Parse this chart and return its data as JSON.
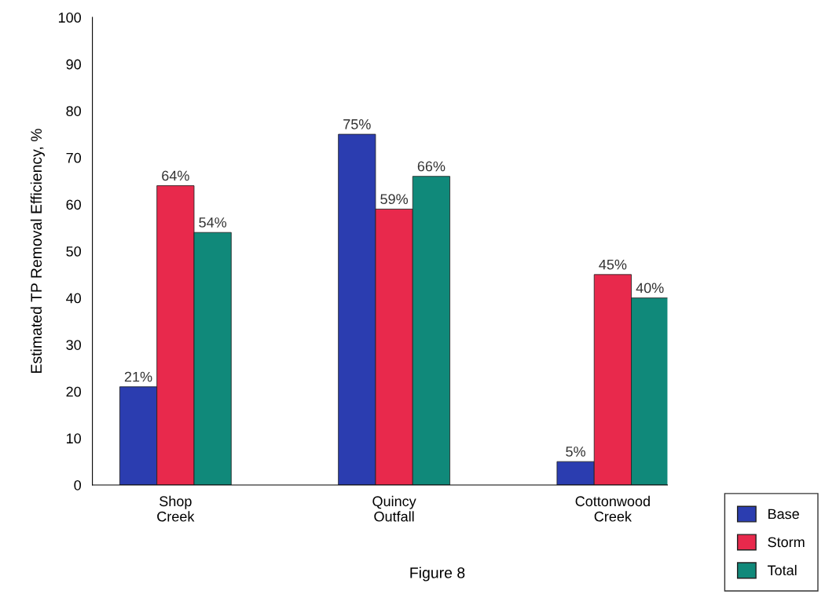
{
  "chart_data": {
    "type": "bar",
    "ylabel": "Estimated TP Removal Efficiency, %",
    "categories": [
      "Shop\nCreek",
      "Quincy\nOutfall",
      "Cottonwood\nCreek"
    ],
    "series": [
      {
        "name": "Base",
        "color": "#2b3db0",
        "values": [
          21,
          75,
          5
        ],
        "value_labels": [
          "21%",
          "75%",
          "5%"
        ]
      },
      {
        "name": "Storm",
        "color": "#e8294c",
        "values": [
          64,
          59,
          45
        ],
        "value_labels": [
          "64%",
          "59%",
          "45%"
        ]
      },
      {
        "name": "Total",
        "color": "#10897a",
        "values": [
          54,
          66,
          40
        ],
        "value_labels": [
          "54%",
          "66%",
          "40%"
        ]
      }
    ],
    "ylim": [
      0,
      100
    ],
    "yticks": [
      0,
      10,
      20,
      30,
      40,
      50,
      60,
      70,
      80,
      90,
      100
    ],
    "grid": false,
    "legend": "bottom right",
    "annotations": [
      "Figure 8"
    ]
  }
}
